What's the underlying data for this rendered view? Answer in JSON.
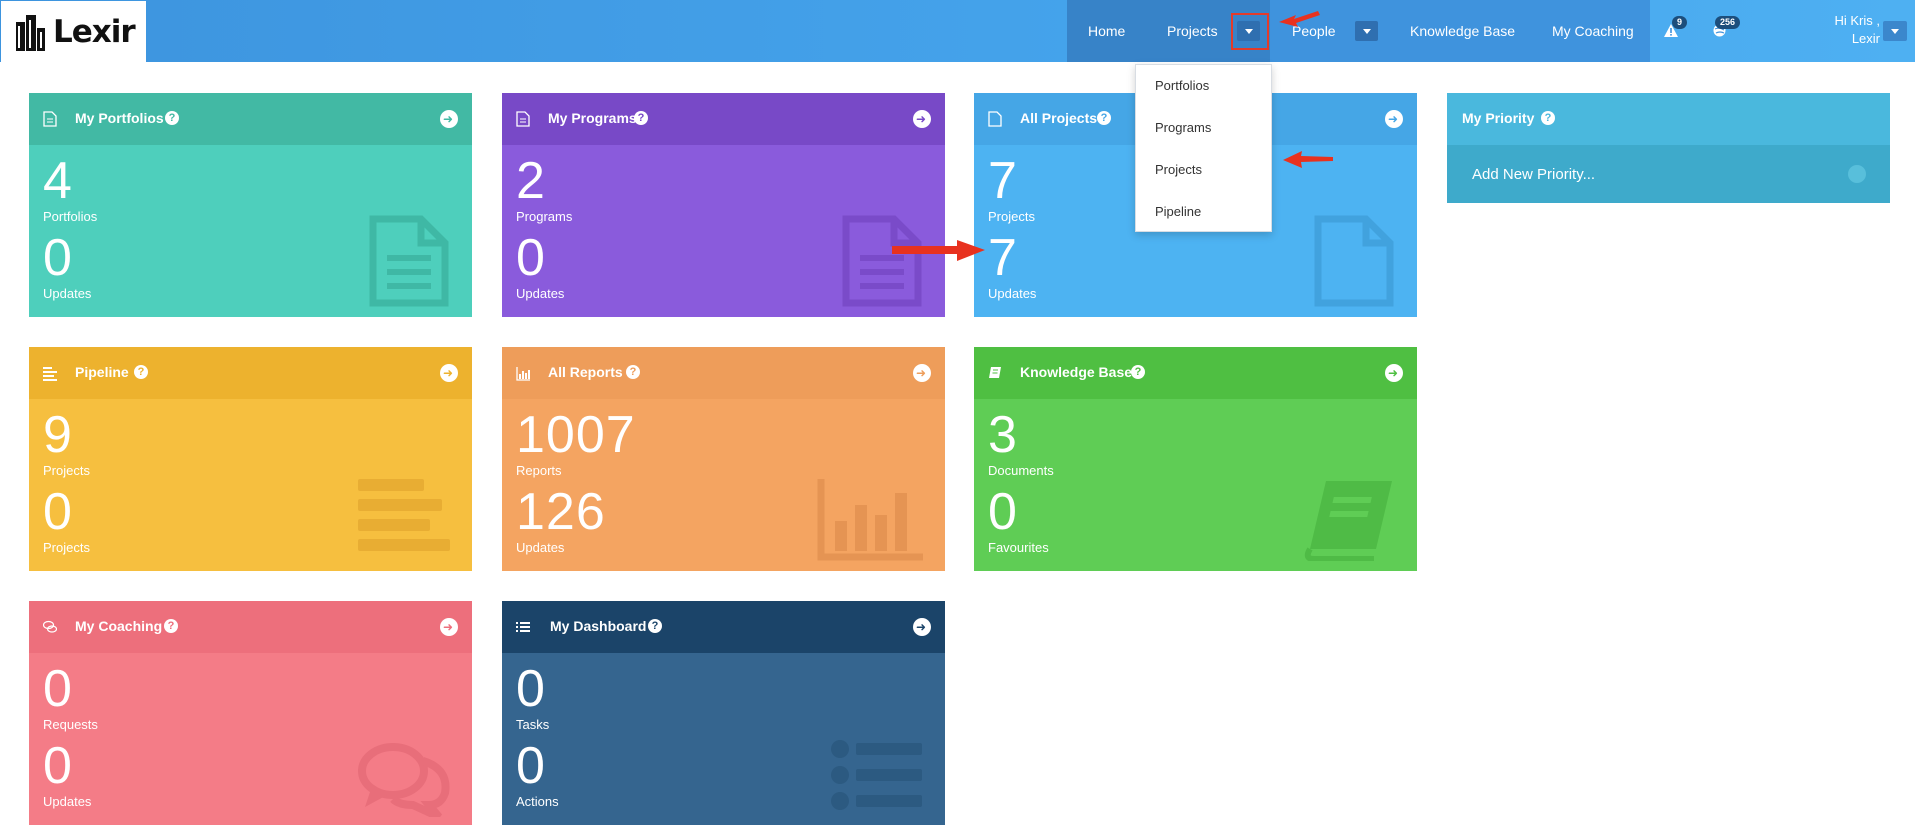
{
  "brand": {
    "name": "Lexir"
  },
  "nav": {
    "home": "Home",
    "projects": "Projects",
    "people": "People",
    "knowledge_base": "Knowledge Base",
    "my_coaching": "My Coaching",
    "alerts_count": "9",
    "notifications_count": "256",
    "greeting_line1": "Hi Kris ,",
    "greeting_line2": "Lexir"
  },
  "projects_dropdown": {
    "items": [
      "Portfolios",
      "Programs",
      "Projects",
      "Pipeline"
    ],
    "highlighted": "Projects"
  },
  "tiles": {
    "portfolios": {
      "title": "My Portfolios",
      "n1": "4",
      "l1": "Portfolios",
      "n2": "0",
      "l2": "Updates",
      "color": "#4ecfbc"
    },
    "programs": {
      "title": "My Programs",
      "n1": "2",
      "l1": "Programs",
      "n2": "0",
      "l2": "Updates",
      "color": "#8a5bdc"
    },
    "projects": {
      "title": "All Projects",
      "n1": "7",
      "l1": "Projects",
      "n2": "7",
      "l2": "Updates",
      "color": "#4db3f2"
    },
    "pipeline": {
      "title": "Pipeline",
      "n1": "9",
      "l1": "Projects",
      "n2": "0",
      "l2": "Projects",
      "color": "#f6bf3f"
    },
    "reports": {
      "title": "All Reports",
      "n1": "1007",
      "l1": "Reports",
      "n2": "126",
      "l2": "Updates",
      "color": "#f4a461"
    },
    "knowledge": {
      "title": "Knowledge Base",
      "n1": "3",
      "l1": "Documents",
      "n2": "0",
      "l2": "Favourites",
      "color": "#5fcd55"
    },
    "coaching": {
      "title": "My Coaching",
      "n1": "0",
      "l1": "Requests",
      "n2": "0",
      "l2": "Updates",
      "color": "#f47c87"
    },
    "dashboard": {
      "title": "My Dashboard",
      "n1": "0",
      "l1": "Tasks",
      "n2": "0",
      "l2": "Actions",
      "color": "#35658f"
    }
  },
  "priority": {
    "title": "My Priority",
    "add_label": "Add New Priority..."
  }
}
